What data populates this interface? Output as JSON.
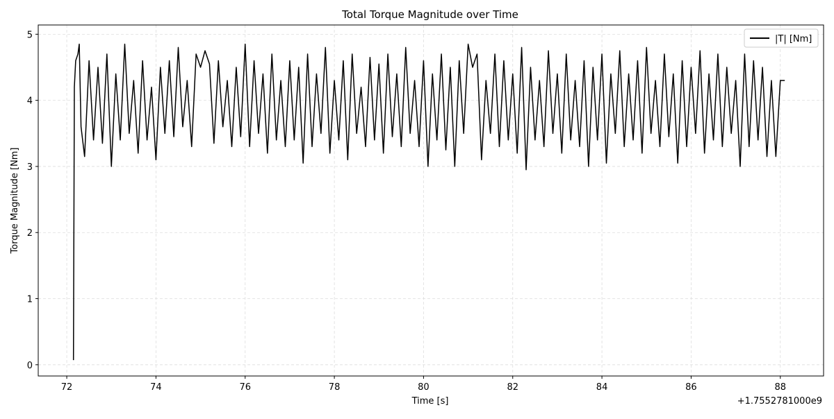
{
  "chart_data": {
    "type": "line",
    "title": "Total Torque Magnitude over Time",
    "xlabel": "Time [s]",
    "ylabel": "Torque Magnitude [Nm]",
    "x_offset_label": "+1.7552781000e9",
    "xlim": [
      71.36,
      88.97
    ],
    "ylim": [
      -0.17,
      5.14
    ],
    "xticks": [
      72,
      74,
      76,
      78,
      80,
      82,
      84,
      86,
      88
    ],
    "yticks": [
      0,
      1,
      2,
      3,
      4,
      5
    ],
    "grid": true,
    "legend": "upper right",
    "x": [
      72.15,
      72.17,
      72.2,
      72.25,
      72.28,
      72.32,
      72.4,
      72.5,
      72.6,
      72.7,
      72.8,
      72.9,
      73.0,
      73.1,
      73.2,
      73.3,
      73.4,
      73.5,
      73.6,
      73.7,
      73.8,
      73.9,
      74.0,
      74.1,
      74.2,
      74.3,
      74.4,
      74.5,
      74.6,
      74.7,
      74.8,
      74.9,
      75.0,
      75.1,
      75.2,
      75.3,
      75.4,
      75.5,
      75.6,
      75.7,
      75.8,
      75.9,
      76.0,
      76.1,
      76.2,
      76.3,
      76.4,
      76.5,
      76.6,
      76.7,
      76.8,
      76.9,
      77.0,
      77.1,
      77.2,
      77.3,
      77.4,
      77.5,
      77.6,
      77.7,
      77.8,
      77.9,
      78.0,
      78.1,
      78.2,
      78.3,
      78.4,
      78.5,
      78.6,
      78.7,
      78.8,
      78.9,
      79.0,
      79.1,
      79.2,
      79.3,
      79.4,
      79.5,
      79.6,
      79.7,
      79.8,
      79.9,
      80.0,
      80.1,
      80.2,
      80.3,
      80.4,
      80.5,
      80.6,
      80.7,
      80.8,
      80.9,
      81.0,
      81.1,
      81.2,
      81.3,
      81.4,
      81.5,
      81.6,
      81.7,
      81.8,
      81.9,
      82.0,
      82.1,
      82.2,
      82.3,
      82.4,
      82.5,
      82.6,
      82.7,
      82.8,
      82.9,
      83.0,
      83.1,
      83.2,
      83.3,
      83.4,
      83.5,
      83.6,
      83.7,
      83.8,
      83.9,
      84.0,
      84.1,
      84.2,
      84.3,
      84.4,
      84.5,
      84.6,
      84.7,
      84.8,
      84.9,
      85.0,
      85.1,
      85.2,
      85.3,
      85.4,
      85.5,
      85.6,
      85.7,
      85.8,
      85.9,
      86.0,
      86.1,
      86.2,
      86.3,
      86.4,
      86.5,
      86.6,
      86.7,
      86.8,
      86.9,
      87.0,
      87.1,
      87.2,
      87.3,
      87.4,
      87.5,
      87.6,
      87.7,
      87.8,
      87.9,
      88.0,
      88.1
    ],
    "series": [
      {
        "name": "|T| [Nm]",
        "color": "#000000",
        "values": [
          0.07,
          4.2,
          4.6,
          4.7,
          4.85,
          3.6,
          3.15,
          4.6,
          3.4,
          4.5,
          3.35,
          4.7,
          3.0,
          4.4,
          3.4,
          4.85,
          3.5,
          4.3,
          3.2,
          4.6,
          3.4,
          4.2,
          3.1,
          4.5,
          3.5,
          4.6,
          3.45,
          4.8,
          3.6,
          4.3,
          3.3,
          4.7,
          4.5,
          4.75,
          4.55,
          3.35,
          4.6,
          3.6,
          4.3,
          3.3,
          4.5,
          3.45,
          4.85,
          3.3,
          4.6,
          3.5,
          4.4,
          3.2,
          4.7,
          3.4,
          4.3,
          3.3,
          4.6,
          3.4,
          4.5,
          3.05,
          4.7,
          3.3,
          4.4,
          3.5,
          4.8,
          3.2,
          4.3,
          3.4,
          4.6,
          3.1,
          4.7,
          3.5,
          4.2,
          3.3,
          4.65,
          3.4,
          4.55,
          3.2,
          4.7,
          3.45,
          4.4,
          3.3,
          4.8,
          3.5,
          4.3,
          3.3,
          4.6,
          3.0,
          4.4,
          3.4,
          4.7,
          3.25,
          4.5,
          3.0,
          4.6,
          3.5,
          4.85,
          4.5,
          4.7,
          3.1,
          4.3,
          3.5,
          4.7,
          3.3,
          4.6,
          3.4,
          4.4,
          3.2,
          4.8,
          2.95,
          4.5,
          3.4,
          4.3,
          3.3,
          4.75,
          3.5,
          4.4,
          3.2,
          4.7,
          3.4,
          4.3,
          3.3,
          4.6,
          3.0,
          4.5,
          3.4,
          4.7,
          3.05,
          4.4,
          3.5,
          4.75,
          3.3,
          4.4,
          3.4,
          4.6,
          3.2,
          4.8,
          3.5,
          4.3,
          3.3,
          4.7,
          3.45,
          4.4,
          3.05,
          4.6,
          3.3,
          4.5,
          3.5,
          4.75,
          3.2,
          4.4,
          3.4,
          4.7,
          3.3,
          4.5,
          3.5,
          4.3,
          3.0,
          4.7,
          3.3,
          4.6,
          3.4,
          4.5,
          3.15,
          4.3,
          3.15,
          4.3,
          4.3
        ]
      }
    ]
  }
}
